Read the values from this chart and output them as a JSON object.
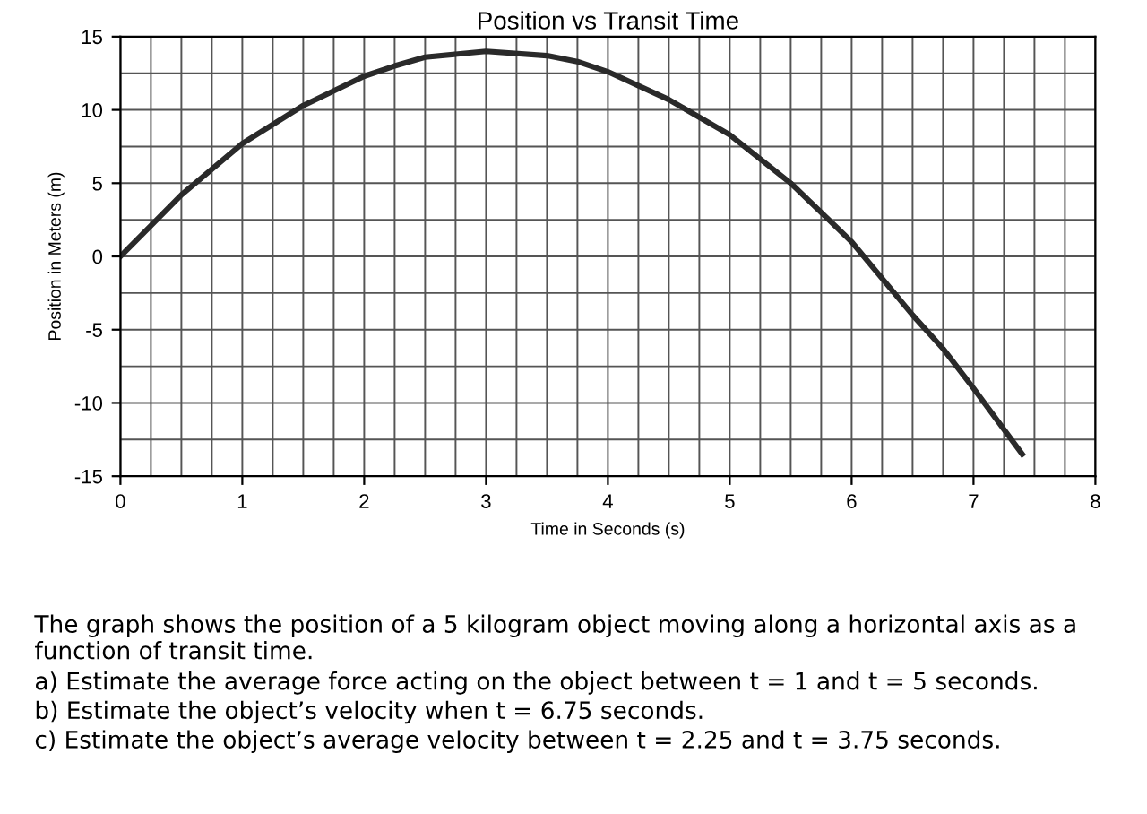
{
  "chart_data": {
    "type": "line",
    "title": "Position vs Transit Time",
    "xlabel": "Time in Seconds (s)",
    "ylabel": "Position in Meters (m)",
    "x": [
      0,
      0.5,
      1,
      1.5,
      2,
      2.25,
      2.5,
      3,
      3.5,
      3.75,
      4,
      4.5,
      5,
      5.5,
      6,
      6.5,
      6.75,
      7,
      7.4
    ],
    "series": [
      {
        "color": "#2a2a2a",
        "values": [
          0,
          4.2,
          7.7,
          10.3,
          12.3,
          13,
          13.6,
          14,
          13.7,
          13.3,
          12.6,
          10.7,
          8.3,
          5,
          1,
          -4,
          -6.3,
          -9,
          -13.5
        ]
      }
    ],
    "xlim": [
      0,
      8
    ],
    "ylim": [
      -15,
      15
    ],
    "xticks": [
      0,
      1,
      2,
      3,
      4,
      5,
      6,
      7,
      8
    ],
    "yticks": [
      -15,
      -10,
      -5,
      0,
      5,
      10,
      15
    ],
    "grid": true,
    "annotations": [
      "The graph shows the position of a 5 kilogram object moving along a horizontal axis as a function of transit time.",
      "a) Estimate the average force acting on the object between t = 1 and t = 5 seconds.",
      "b) Estimate the object’s velocity when t = 6.75 seconds.",
      "c) Estimate the object’s average velocity between t = 2.25 and t = 3.75 seconds."
    ]
  }
}
